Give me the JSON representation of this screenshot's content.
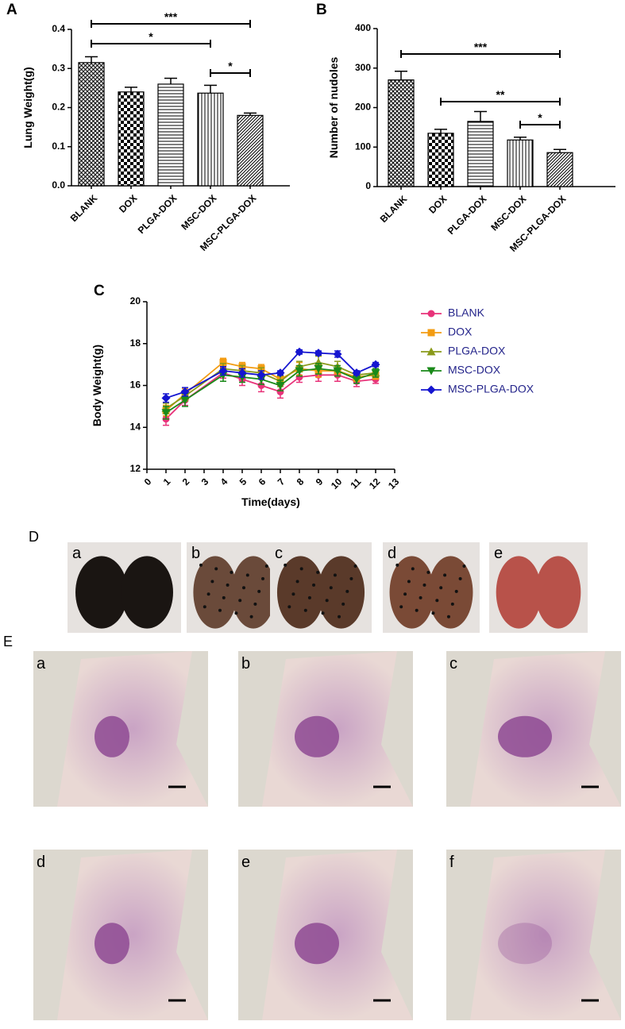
{
  "chart_data": [
    {
      "type": "bar",
      "label": "A",
      "ylabel": "Lung Weight(g)",
      "categories": [
        "BLANK",
        "DOX",
        "PLGA-DOX",
        "MSC-DOX",
        "MSC-PLGA-DOX"
      ],
      "values": [
        0.315,
        0.24,
        0.26,
        0.237,
        0.18
      ],
      "errors": [
        0.015,
        0.012,
        0.015,
        0.02,
        0.006
      ],
      "patterns": [
        "crosshatch",
        "checker",
        "horizontal",
        "vertical",
        "diagonal"
      ],
      "ylim": [
        0,
        0.4
      ],
      "yticks": [
        {
          "value": 0,
          "label": "0.0"
        },
        0.1,
        0.2,
        0.3,
        0.4
      ],
      "annotations": [
        {
          "text": "***",
          "between": [
            0,
            4
          ]
        },
        {
          "text": "*",
          "between": [
            0,
            3
          ]
        },
        {
          "text": "*",
          "between": [
            3,
            4
          ]
        }
      ]
    },
    {
      "type": "bar",
      "label": "B",
      "ylabel": "Number of nudoles",
      "categories": [
        "BLANK",
        "DOX",
        "PLGA-DOX",
        "MSC-DOX",
        "MSC-PLGA-DOX"
      ],
      "values": [
        270,
        135,
        165,
        118,
        86
      ],
      "errors": [
        22,
        10,
        25,
        7,
        8
      ],
      "patterns": [
        "crosshatch",
        "checker",
        "horizontal",
        "vertical",
        "diagonal"
      ],
      "ylim": [
        0,
        400
      ],
      "yticks": [
        0,
        100,
        200,
        300,
        400
      ],
      "annotations": [
        {
          "text": "***",
          "between": [
            0,
            4
          ]
        },
        {
          "text": "**",
          "between": [
            1,
            4
          ]
        },
        {
          "text": "*",
          "between": [
            3,
            4
          ]
        }
      ]
    },
    {
      "type": "line",
      "label": "C",
      "xlabel": "Time(days)",
      "ylabel": "Body Weight(g)",
      "x": [
        1,
        2,
        4,
        5,
        6,
        7,
        8,
        9,
        10,
        11,
        12
      ],
      "series": [
        {
          "name": "BLANK",
          "color": "#e8337a",
          "marker": "circle",
          "values": [
            14.4,
            15.3,
            16.6,
            16.3,
            16.0,
            15.7,
            16.4,
            16.5,
            16.5,
            16.2,
            16.3
          ],
          "errors": [
            0.3,
            0.25,
            0.25,
            0.3,
            0.3,
            0.3,
            0.25,
            0.3,
            0.3,
            0.25,
            0.2
          ]
        },
        {
          "name": "DOX",
          "color": "#f39c12",
          "marker": "square",
          "values": [
            14.8,
            15.6,
            17.1,
            16.9,
            16.8,
            16.3,
            16.8,
            16.7,
            16.7,
            16.4,
            16.5
          ],
          "errors": [
            0.25,
            0.25,
            0.2,
            0.2,
            0.2,
            0.2,
            0.3,
            0.3,
            0.25,
            0.2,
            0.2
          ]
        },
        {
          "name": "PLGA-DOX",
          "color": "#8a9a1a",
          "marker": "triangle-up",
          "values": [
            14.9,
            15.5,
            16.8,
            16.7,
            16.6,
            16.2,
            16.9,
            17.1,
            16.9,
            16.5,
            16.6
          ],
          "errors": [
            0.25,
            0.25,
            0.25,
            0.25,
            0.25,
            0.25,
            0.25,
            0.3,
            0.25,
            0.2,
            0.2
          ]
        },
        {
          "name": "MSC-DOX",
          "color": "#1a8a1a",
          "marker": "triangle-down",
          "values": [
            14.7,
            15.3,
            16.5,
            16.4,
            16.3,
            16.0,
            16.7,
            16.8,
            16.7,
            16.3,
            16.6
          ],
          "errors": [
            0.3,
            0.3,
            0.3,
            0.25,
            0.25,
            0.25,
            0.25,
            0.25,
            0.25,
            0.2,
            0.2
          ]
        },
        {
          "name": "MSC-PLGA-DOX",
          "color": "#1515d0",
          "marker": "diamond",
          "values": [
            15.4,
            15.7,
            16.7,
            16.6,
            16.5,
            16.6,
            17.6,
            17.55,
            17.5,
            16.6,
            17.0
          ],
          "errors": [
            0.2,
            0.2,
            0.2,
            0.2,
            0.2,
            0.1,
            0.1,
            0.1,
            0.15,
            0.1,
            0.1
          ]
        }
      ],
      "xlim": [
        0,
        13
      ],
      "xticks": [
        0,
        1,
        2,
        3,
        4,
        5,
        6,
        7,
        8,
        9,
        10,
        11,
        12,
        13
      ],
      "ylim": [
        12,
        20
      ],
      "yticks": [
        12,
        14,
        16,
        18,
        20
      ]
    }
  ],
  "figure_d": {
    "label": "D",
    "panels": [
      "a",
      "b",
      "c",
      "d",
      "e"
    ]
  },
  "figure_e": {
    "label": "E",
    "panels": [
      "a",
      "b",
      "c",
      "d",
      "e",
      "f"
    ]
  }
}
